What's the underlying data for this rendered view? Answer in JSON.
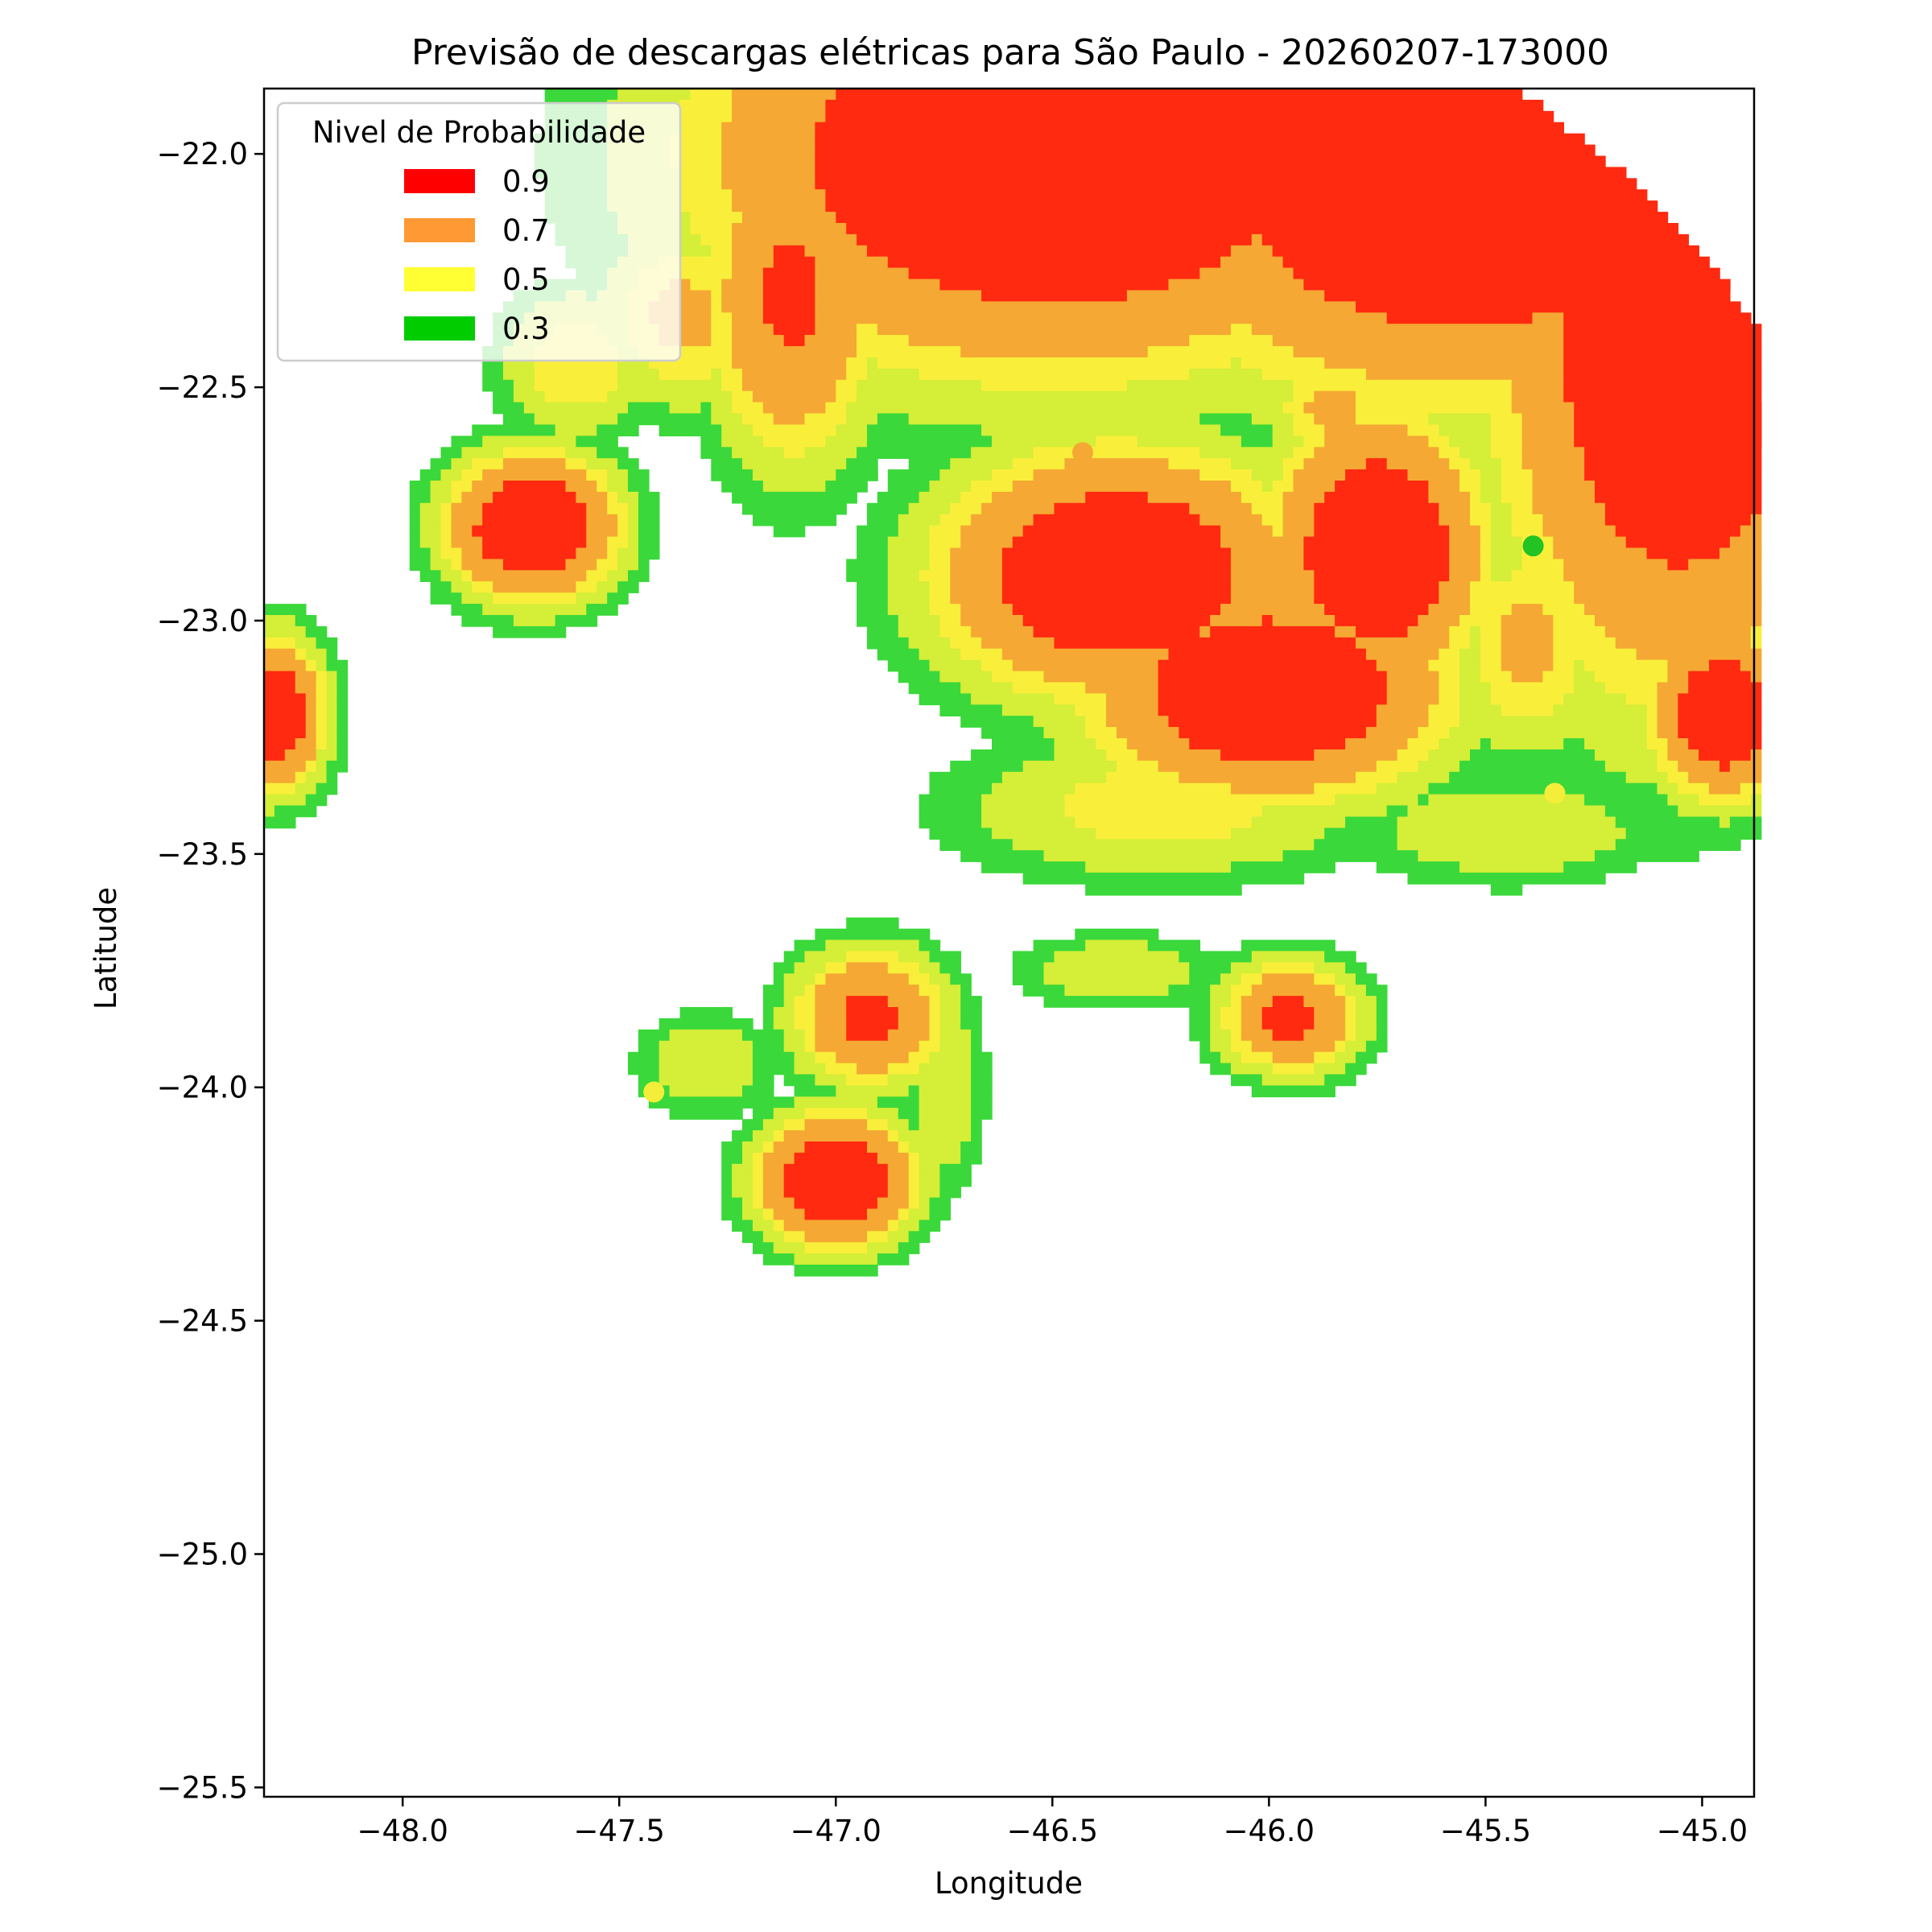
{
  "chart_data": {
    "type": "contourf",
    "title": "Previsão de descargas elétricas para São Paulo - 20260207-173000",
    "xlabel": "Longitude",
    "ylabel": "Latitude",
    "xlim": [
      -48.32,
      -44.88
    ],
    "ylim": [
      -25.52,
      -21.86
    ],
    "xticks": [
      {
        "value": -48.0,
        "label": "−48.0"
      },
      {
        "value": -47.5,
        "label": "−47.5"
      },
      {
        "value": -47.0,
        "label": "−47.0"
      },
      {
        "value": -46.5,
        "label": "−46.5"
      },
      {
        "value": -46.0,
        "label": "−46.0"
      },
      {
        "value": -45.5,
        "label": "−45.5"
      },
      {
        "value": -45.0,
        "label": "−45.0"
      }
    ],
    "yticks": [
      {
        "value": -22.0,
        "label": "−22.0"
      },
      {
        "value": -22.5,
        "label": "−22.5"
      },
      {
        "value": -23.0,
        "label": "−23.0"
      },
      {
        "value": -23.5,
        "label": "−23.5"
      },
      {
        "value": -24.0,
        "label": "−24.0"
      },
      {
        "value": -24.5,
        "label": "−24.5"
      },
      {
        "value": -25.0,
        "label": "−25.0"
      },
      {
        "value": -25.5,
        "label": "−25.5"
      }
    ],
    "legend": {
      "title": "Nivel de Probabilidade",
      "placement": "top-left",
      "entries": [
        {
          "label": "0.9",
          "color": "#ff0000"
        },
        {
          "label": "0.7",
          "color": "#ff9933"
        },
        {
          "label": "0.5",
          "color": "#ffff33"
        },
        {
          "label": "0.3",
          "color": "#00cc00"
        }
      ]
    },
    "level_colors": {
      "0.3": "#3ad83a",
      "0.4": "#d5ee38",
      "0.5": "#f9ef3a",
      "0.7": "#f5a833",
      "0.9": "#ff2a10"
    },
    "radar_center": [
      -46.65,
      -23.75
    ],
    "radar_radius_deg": 2.25,
    "cells": [
      {
        "lon": -46.5,
        "lat": -22.0,
        "rx": 0.95,
        "ry": 0.55,
        "peak": 1.05
      },
      {
        "lon": -45.55,
        "lat": -22.05,
        "rx": 0.9,
        "ry": 0.55,
        "peak": 1.05
      },
      {
        "lon": -45.05,
        "lat": -22.4,
        "rx": 0.5,
        "ry": 0.9,
        "peak": 1.0
      },
      {
        "lon": -46.35,
        "lat": -22.9,
        "rx": 0.5,
        "ry": 0.32,
        "peak": 1.0
      },
      {
        "lon": -46.0,
        "lat": -23.15,
        "rx": 0.5,
        "ry": 0.28,
        "peak": 1.0
      },
      {
        "lon": -45.75,
        "lat": -22.85,
        "rx": 0.3,
        "ry": 0.35,
        "peak": 1.0
      },
      {
        "lon": -44.95,
        "lat": -23.2,
        "rx": 0.2,
        "ry": 0.22,
        "peak": 0.98
      },
      {
        "lon": -47.7,
        "lat": -22.8,
        "rx": 0.24,
        "ry": 0.19,
        "peak": 1.0
      },
      {
        "lon": -47.0,
        "lat": -24.2,
        "rx": 0.22,
        "ry": 0.17,
        "peak": 1.0
      },
      {
        "lon": -48.3,
        "lat": -23.2,
        "rx": 0.15,
        "ry": 0.2,
        "peak": 0.95
      },
      {
        "lon": -46.92,
        "lat": -23.85,
        "rx": 0.22,
        "ry": 0.18,
        "peak": 0.82
      },
      {
        "lon": -45.95,
        "lat": -23.85,
        "rx": 0.2,
        "ry": 0.15,
        "peak": 0.82
      },
      {
        "lon": -47.1,
        "lat": -22.3,
        "rx": 0.25,
        "ry": 0.45,
        "peak": 0.8
      },
      {
        "lon": -47.35,
        "lat": -22.35,
        "rx": 0.25,
        "ry": 0.25,
        "peak": 0.6
      },
      {
        "lon": -45.4,
        "lat": -23.05,
        "rx": 0.22,
        "ry": 0.3,
        "peak": 0.6
      },
      {
        "lon": -45.85,
        "lat": -22.55,
        "rx": 0.2,
        "ry": 0.15,
        "peak": 0.6
      },
      {
        "lon": -45.45,
        "lat": -23.45,
        "rx": 0.45,
        "ry": 0.15,
        "peak": 0.45
      },
      {
        "lon": -46.25,
        "lat": -23.4,
        "rx": 0.6,
        "ry": 0.2,
        "peak": 0.52
      },
      {
        "lon": -46.35,
        "lat": -23.75,
        "rx": 0.3,
        "ry": 0.1,
        "peak": 0.45
      },
      {
        "lon": -47.3,
        "lat": -23.95,
        "rx": 0.2,
        "ry": 0.14,
        "peak": 0.45
      },
      {
        "lon": -46.75,
        "lat": -24.0,
        "rx": 0.12,
        "ry": 0.3,
        "peak": 0.45
      },
      {
        "lon": -47.6,
        "lat": -22.45,
        "rx": 0.22,
        "ry": 0.2,
        "peak": 0.55
      }
    ],
    "points": [
      {
        "lon": -46.43,
        "lat": -22.64,
        "level": "0.7"
      },
      {
        "lon": -46.42,
        "lat": -22.68,
        "level": "0.7"
      },
      {
        "lon": -45.39,
        "lat": -22.84,
        "level": "0.3"
      },
      {
        "lon": -45.34,
        "lat": -23.37,
        "level": "0.5"
      },
      {
        "lon": -47.42,
        "lat": -24.01,
        "level": "0.5"
      }
    ]
  }
}
